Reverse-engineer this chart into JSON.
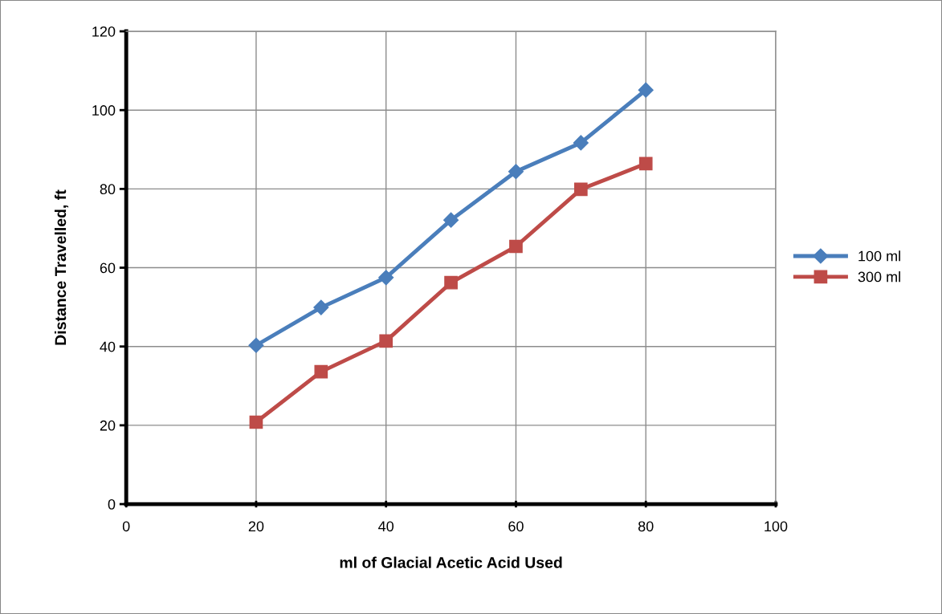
{
  "chart_data": {
    "type": "line",
    "xlabel": "ml of Glacial Acetic Acid Used",
    "ylabel": "Distance Travelled, ft",
    "x": [
      20,
      30,
      40,
      50,
      60,
      70,
      80
    ],
    "series": [
      {
        "name": "100 ml",
        "color": "#4a7ebb",
        "marker": "diamond",
        "values": [
          40.3,
          49.9,
          57.5,
          72.1,
          84.4,
          91.7,
          105.1
        ]
      },
      {
        "name": "300 ml",
        "color": "#be4b48",
        "marker": "square",
        "values": [
          20.8,
          33.6,
          41.4,
          56.2,
          65.4,
          79.9,
          86.4
        ]
      }
    ],
    "xlim": [
      0,
      100
    ],
    "xticks": [
      0,
      20,
      40,
      60,
      80,
      100
    ],
    "ylim": [
      0,
      120
    ],
    "yticks": [
      0,
      20,
      40,
      60,
      80,
      100,
      120
    ],
    "grid": true,
    "legend": "right",
    "line_style": "solid"
  }
}
